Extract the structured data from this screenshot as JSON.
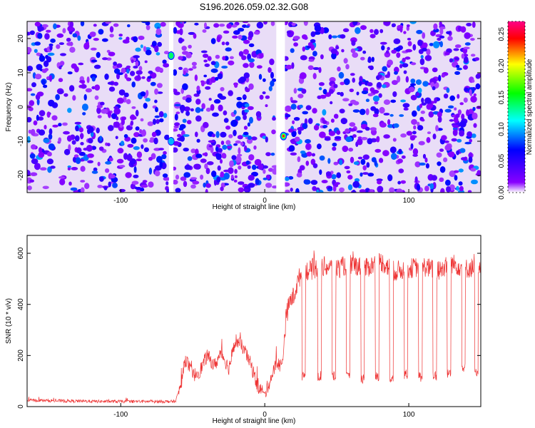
{
  "title": "S196.2026.059.02.32.G08",
  "chart_data": [
    {
      "type": "heatmap",
      "title": "S196.2026.059.02.32.G08",
      "xlabel": "Height of straight line (km)",
      "ylabel": "Frequency (Hz)",
      "xlim": [
        -165,
        150
      ],
      "ylim": [
        -25,
        25
      ],
      "xticks": [
        -100,
        0,
        100
      ],
      "yticks": [
        -20,
        -10,
        0,
        10,
        20
      ],
      "colorbar": {
        "label": "Normalized spectral amplitude",
        "range": [
          0,
          0.27
        ],
        "ticks": [
          "0.00",
          "0.05",
          "0.10",
          "0.15",
          "0.20",
          "0.25"
        ],
        "tick_values": [
          0,
          0.05,
          0.1,
          0.15,
          0.2,
          0.25
        ],
        "colors": [
          "#ffffff",
          "#8800ff",
          "#0000ff",
          "#00ffff",
          "#00ff00",
          "#ffff00",
          "#ff0000",
          "#ff0088"
        ]
      },
      "features": [
        {
          "kind": "gap",
          "x": -65,
          "width_km": 3
        },
        {
          "kind": "gap",
          "x": 11,
          "width_km": 6
        },
        {
          "kind": "peak",
          "x": 13,
          "y": -8.5,
          "amplitude": 0.25
        },
        {
          "kind": "peak",
          "x": -65,
          "y": 15,
          "amplitude": 0.14
        },
        {
          "kind": "peak",
          "x": -65,
          "y": -10,
          "amplitude": 0.12
        }
      ]
    },
    {
      "type": "line",
      "xlabel": "Height of straight line (km)",
      "ylabel": "SNR (10 * v/v)",
      "xlim": [
        -165,
        150
      ],
      "ylim": [
        0,
        670
      ],
      "xticks": [
        -100,
        0,
        100
      ],
      "yticks": [
        0,
        200,
        400,
        600
      ],
      "series": [
        {
          "name": "SNR",
          "color": "#ee3333",
          "x": [
            -165,
            -140,
            -110,
            -80,
            -62,
            -58,
            -55,
            -50,
            -45,
            -40,
            -35,
            -30,
            -25,
            -20,
            -15,
            -10,
            -5,
            0,
            5,
            8,
            12,
            15,
            18,
            20,
            22,
            25,
            27,
            30,
            40,
            50,
            60,
            70,
            80,
            90,
            100,
            110,
            120,
            130,
            140,
            150
          ],
          "values": [
            25,
            22,
            20,
            20,
            20,
            90,
            190,
            120,
            140,
            200,
            160,
            210,
            150,
            260,
            230,
            170,
            80,
            50,
            120,
            170,
            160,
            360,
            420,
            430,
            470,
            520,
            540,
            530,
            550,
            540,
            560,
            540,
            570,
            530,
            540,
            550,
            530,
            560,
            540,
            550
          ],
          "dips": [
            {
              "x": 27,
              "value": 120
            },
            {
              "x": 38,
              "value": 120
            },
            {
              "x": 48,
              "value": 120
            },
            {
              "x": 58,
              "value": 115
            },
            {
              "x": 68,
              "value": 110
            },
            {
              "x": 78,
              "value": 120
            },
            {
              "x": 88,
              "value": 110
            },
            {
              "x": 98,
              "value": 125
            },
            {
              "x": 108,
              "value": 115
            },
            {
              "x": 118,
              "value": 120
            },
            {
              "x": 128,
              "value": 130
            },
            {
              "x": 138,
              "value": 150
            },
            {
              "x": 147,
              "value": 130
            }
          ]
        }
      ]
    }
  ]
}
